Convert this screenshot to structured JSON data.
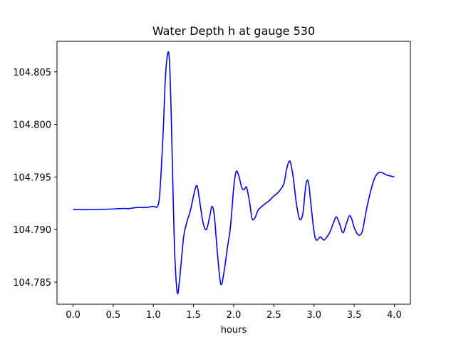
{
  "chart_data": {
    "type": "line",
    "title": "Water Depth h at gauge 530",
    "xlabel": "hours",
    "ylabel": "",
    "xlim": [
      -0.2,
      4.2
    ],
    "ylim": [
      104.7829,
      104.8079
    ],
    "xticks": [
      "0.0",
      "0.5",
      "1.0",
      "1.5",
      "2.0",
      "2.5",
      "3.0",
      "3.5",
      "4.0"
    ],
    "xtick_values": [
      0,
      0.5,
      1.0,
      1.5,
      2.0,
      2.5,
      3.0,
      3.5,
      4.0
    ],
    "yticks": [
      "104.785",
      "104.790",
      "104.795",
      "104.800",
      "104.805"
    ],
    "ytick_values": [
      104.785,
      104.79,
      104.795,
      104.8,
      104.805
    ],
    "grid": false,
    "series": [
      {
        "color": "#0000ff",
        "x": [
          0,
          0.3,
          0.6,
          0.65,
          0.7,
          0.8,
          0.9,
          1.0,
          1.05,
          1.08,
          1.12,
          1.15,
          1.18,
          1.2,
          1.22,
          1.24,
          1.26,
          1.28,
          1.3,
          1.32,
          1.35,
          1.38,
          1.42,
          1.46,
          1.5,
          1.53,
          1.55,
          1.58,
          1.62,
          1.66,
          1.7,
          1.73,
          1.76,
          1.8,
          1.84,
          1.88,
          1.92,
          1.96,
          2.0,
          2.03,
          2.06,
          2.1,
          2.13,
          2.16,
          2.2,
          2.23,
          2.27,
          2.3,
          2.35,
          2.4,
          2.45,
          2.5,
          2.55,
          2.6,
          2.63,
          2.66,
          2.7,
          2.74,
          2.78,
          2.82,
          2.86,
          2.9,
          2.93,
          2.96,
          3.0,
          3.03,
          3.08,
          3.12,
          3.16,
          3.2,
          3.25,
          3.28,
          3.32,
          3.36,
          3.4,
          3.44,
          3.47,
          3.5,
          3.55,
          3.6,
          3.65,
          3.7,
          3.75,
          3.8,
          3.85,
          3.9,
          3.95,
          4.0
        ],
        "y": [
          104.7919,
          104.7919,
          104.792,
          104.792,
          104.792,
          104.7921,
          104.7921,
          104.7922,
          104.7922,
          104.7935,
          104.799,
          104.8045,
          104.8068,
          104.806,
          104.8015,
          104.795,
          104.789,
          104.7855,
          104.7839,
          104.7848,
          104.7872,
          104.7895,
          104.7908,
          104.7918,
          104.7932,
          104.7941,
          104.794,
          104.7925,
          104.7906,
          104.79,
          104.7912,
          104.7922,
          104.7912,
          104.7875,
          104.7848,
          104.786,
          104.7882,
          104.7903,
          104.794,
          104.7955,
          104.7952,
          104.794,
          104.7938,
          104.794,
          104.7925,
          104.791,
          104.7912,
          104.7918,
          104.7922,
          104.7925,
          104.7928,
          104.7932,
          104.7935,
          104.794,
          104.7945,
          104.7958,
          104.7965,
          104.795,
          104.7925,
          104.791,
          104.7915,
          104.7943,
          104.7945,
          104.7925,
          104.7898,
          104.789,
          104.7893,
          104.789,
          104.7893,
          104.7898,
          104.7908,
          104.7912,
          104.7905,
          104.7897,
          104.7905,
          104.7913,
          104.791,
          104.7902,
          104.7895,
          104.7898,
          104.7918,
          104.7935,
          104.7948,
          104.7954,
          104.7954,
          104.7952,
          104.7951,
          104.795
        ]
      }
    ]
  }
}
